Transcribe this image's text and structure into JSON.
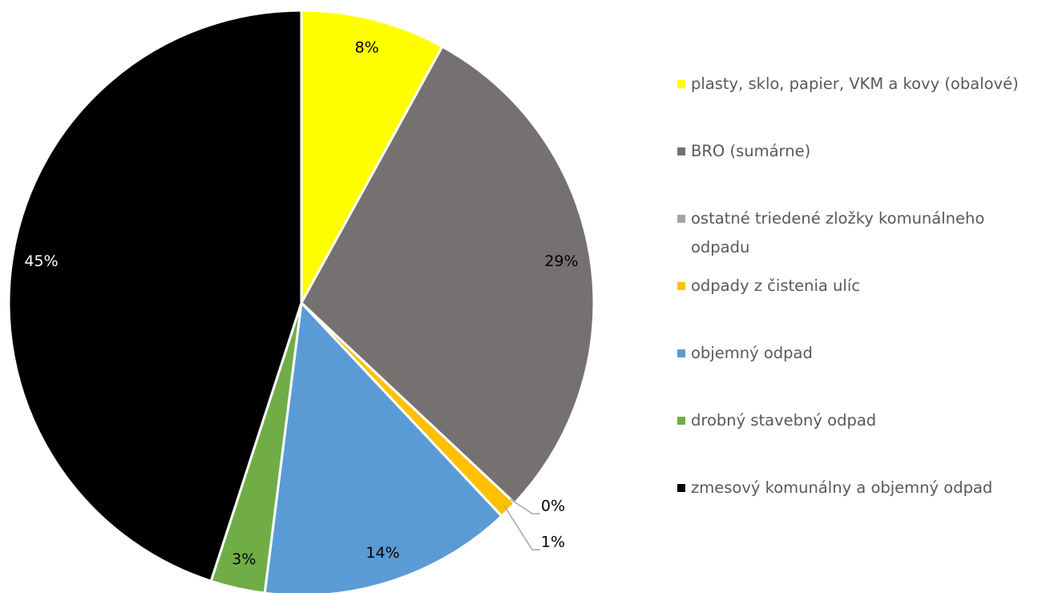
{
  "chart_data": {
    "type": "pie",
    "categories": [
      "plasty, sklo, papier, VKM a kovy (obalové)",
      "BRO (sumárne)",
      "ostatné triedené zložky komunálneho odpadu",
      "odpady z čistenia ulíc",
      "objemný odpad",
      "drobný stavebný odpad",
      "zmesový komunálny a objemný odpad"
    ],
    "values": [
      8,
      29,
      0,
      1,
      14,
      3,
      45
    ],
    "value_labels": [
      "8%",
      "29%",
      "0%",
      "1%",
      "14%",
      "3%",
      "45%"
    ],
    "colors": [
      "#ffff00",
      "#767171",
      "#a5a5a5",
      "#ffc000",
      "#5b9bd5",
      "#70ad47",
      "#000000"
    ],
    "legend": "right"
  }
}
